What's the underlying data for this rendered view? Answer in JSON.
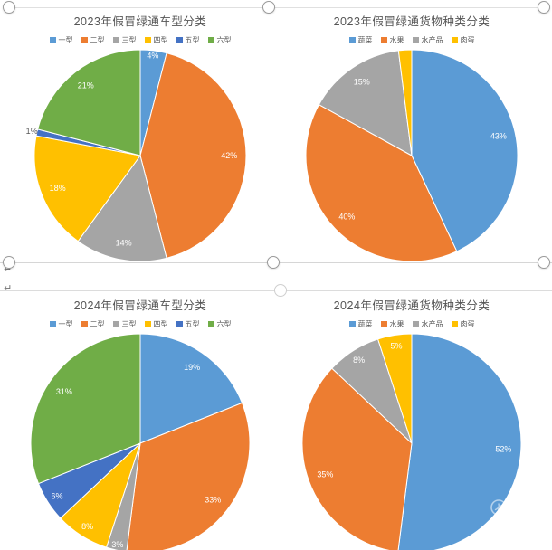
{
  "document": {
    "paragraph_mark": "↵",
    "watermark": {
      "text": "美篇"
    }
  },
  "chart_data": [
    {
      "type": "pie",
      "title": "2023年假冒绿通车型分类",
      "legend": [
        "一型",
        "二型",
        "三型",
        "四型",
        "五型",
        "六型"
      ],
      "categories": [
        "一型",
        "二型",
        "三型",
        "四型",
        "五型",
        "六型"
      ],
      "values": [
        4,
        42,
        14,
        18,
        1,
        21
      ],
      "data_labels": [
        "4%",
        "42%",
        "14%",
        "18%",
        "1%",
        "21%"
      ],
      "colors": [
        "#5B9BD5",
        "#ED7D31",
        "#A5A5A5",
        "#FFC000",
        "#4472C4",
        "#70AD47"
      ],
      "legend_position": "top"
    },
    {
      "type": "pie",
      "title": "2023年假冒绿通货物种类分类",
      "legend": [
        "蔬菜",
        "水果",
        "水产品",
        "肉蛋"
      ],
      "categories": [
        "蔬菜",
        "水果",
        "水产品",
        "肉蛋"
      ],
      "values": [
        43,
        40,
        15,
        2
      ],
      "data_labels": [
        "43%",
        "40%",
        "15%",
        ""
      ],
      "colors": [
        "#5B9BD5",
        "#ED7D31",
        "#A5A5A5",
        "#FFC000"
      ],
      "legend_position": "top"
    },
    {
      "type": "pie",
      "title": "2024年假冒绿通车型分类",
      "legend": [
        "一型",
        "二型",
        "三型",
        "四型",
        "五型",
        "六型"
      ],
      "categories": [
        "一型",
        "二型",
        "三型",
        "四型",
        "五型",
        "六型"
      ],
      "values": [
        19,
        33,
        3,
        8,
        6,
        31
      ],
      "data_labels": [
        "19%",
        "33%",
        "3%",
        "8%",
        "6%",
        "31%"
      ],
      "colors": [
        "#5B9BD5",
        "#ED7D31",
        "#A5A5A5",
        "#FFC000",
        "#4472C4",
        "#70AD47"
      ],
      "legend_position": "top"
    },
    {
      "type": "pie",
      "title": "2024年假冒绿通货物种类分类",
      "legend": [
        "蔬菜",
        "水果",
        "水产品",
        "肉蛋"
      ],
      "categories": [
        "蔬菜",
        "水果",
        "水产品",
        "肉蛋"
      ],
      "values": [
        52,
        35,
        8,
        5
      ],
      "data_labels": [
        "52%",
        "35%",
        "8%",
        "5%"
      ],
      "colors": [
        "#5B9BD5",
        "#ED7D31",
        "#A5A5A5",
        "#FFC000"
      ],
      "legend_position": "top"
    }
  ]
}
